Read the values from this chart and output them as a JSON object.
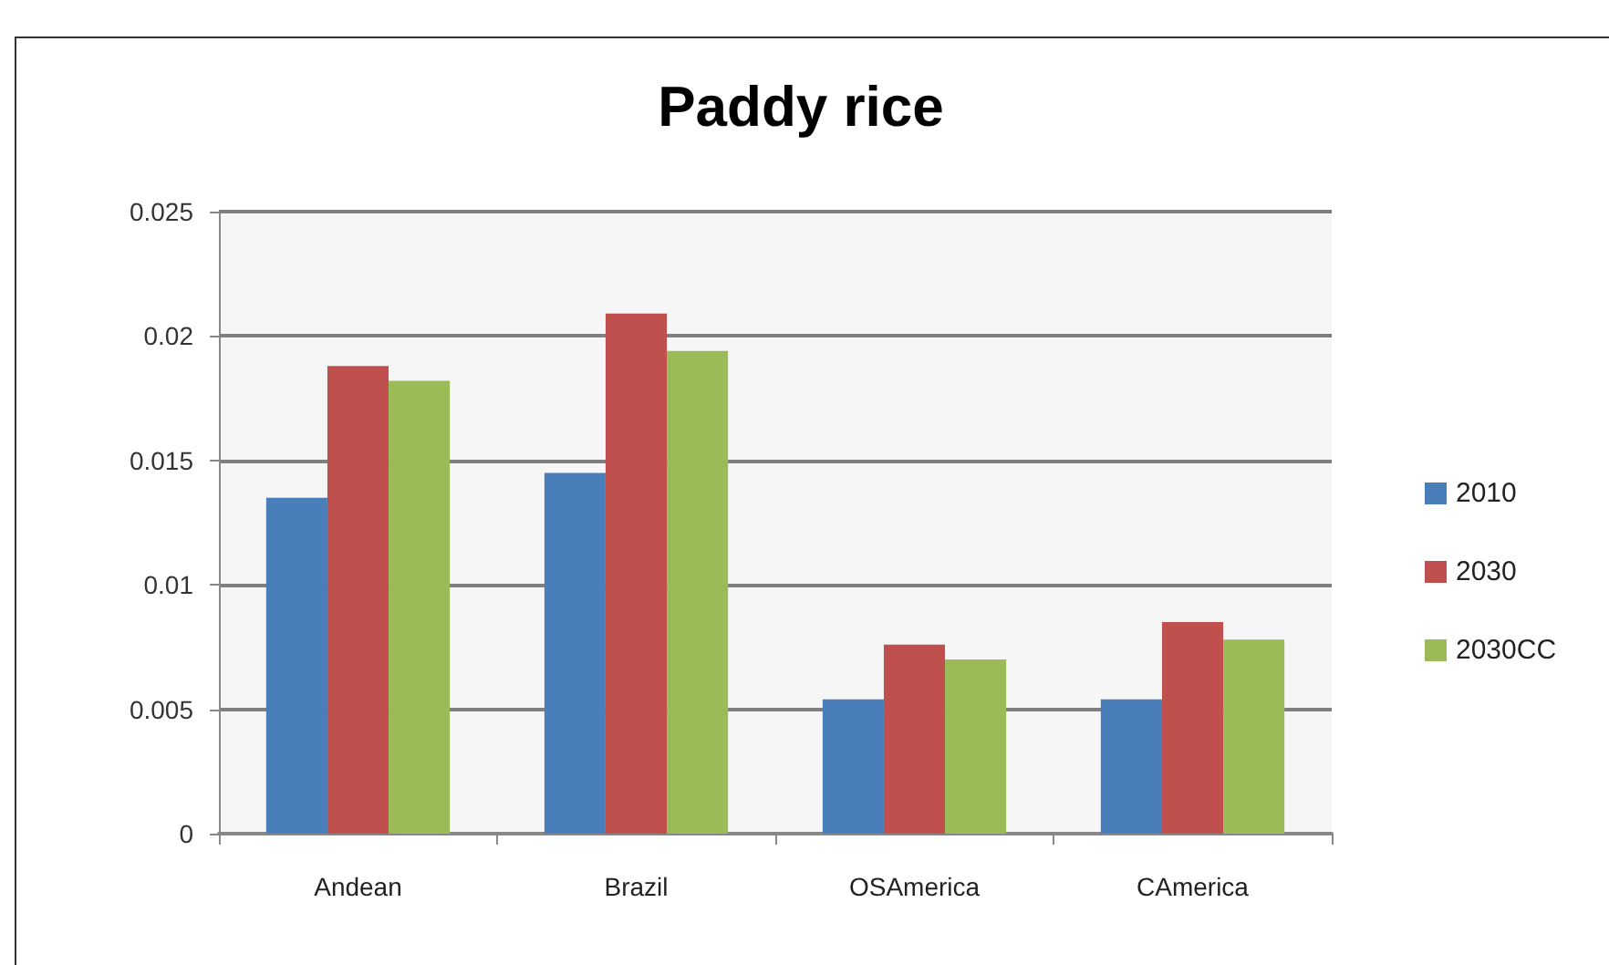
{
  "chart_data": {
    "type": "bar",
    "title": "Paddy rice",
    "categories": [
      "Andean",
      "Brazil",
      "OSAmerica",
      "CAmerica"
    ],
    "series": [
      {
        "name": "2010",
        "color": "#4a7ebb",
        "values": [
          0.0135,
          0.0145,
          0.0054,
          0.0054
        ]
      },
      {
        "name": "2030",
        "color": "#c0504d",
        "values": [
          0.0188,
          0.0209,
          0.0076,
          0.0085
        ]
      },
      {
        "name": "2030CC",
        "color": "#9bbb59",
        "values": [
          0.0182,
          0.0194,
          0.007,
          0.0078
        ]
      }
    ],
    "ylim": [
      0,
      0.025
    ],
    "yticks": [
      0,
      0.005,
      0.01,
      0.015,
      0.02,
      0.025
    ],
    "grid": "y",
    "legend": "right"
  }
}
